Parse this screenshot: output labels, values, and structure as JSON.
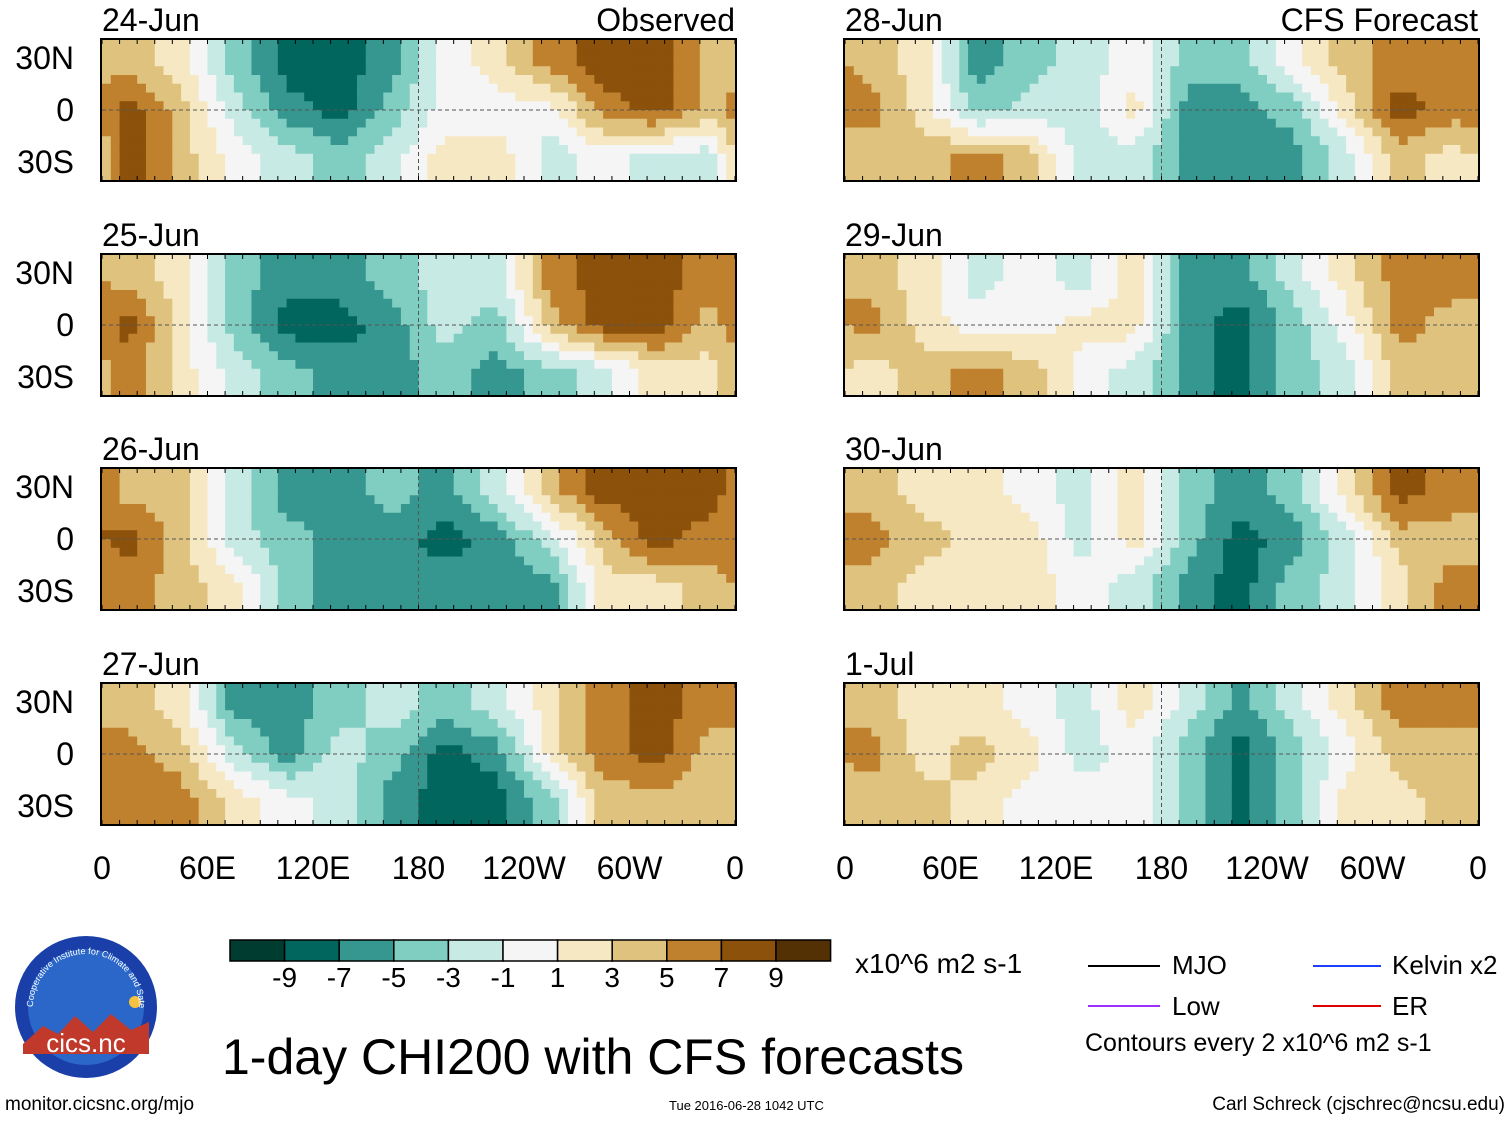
{
  "chart_data": {
    "type": "heatmap",
    "title": "1-day CHI200 with CFS forecasts",
    "units": "x10^6 m2 s-1",
    "section_labels": {
      "observed": "Observed",
      "forecast": "CFS Forecast"
    },
    "lon_ticks": [
      "0",
      "60E",
      "120E",
      "180",
      "120W",
      "60W",
      "0"
    ],
    "lat_ticks": [
      "30N",
      "0",
      "30S"
    ],
    "grid_lon_bins": "30-degree bins from 0E eastward",
    "grid_lat_bins": [
      "30N-10N",
      "10N-10S",
      "10S-30S"
    ],
    "colorbar": {
      "ticks": [
        "-9",
        "-7",
        "-5",
        "-3",
        "-1",
        "1",
        "3",
        "5",
        "7",
        "9"
      ],
      "colors": [
        "#003c30",
        "#01665e",
        "#35978f",
        "#80cdc1",
        "#c7eae5",
        "#f5f5f5",
        "#f6e8c3",
        "#dfc27d",
        "#bf812d",
        "#8c510a",
        "#543005"
      ]
    },
    "panels": [
      {
        "date": "24-Jun",
        "group": "observed",
        "values": [
          [
            4,
            2,
            -4,
            -8,
            -8,
            -6,
            0,
            2,
            6,
            8,
            8,
            4
          ],
          [
            8,
            4,
            -2,
            -6,
            -8,
            -4,
            0,
            0,
            0,
            6,
            8,
            4
          ],
          [
            8,
            4,
            0,
            -2,
            -4,
            -2,
            2,
            2,
            -2,
            0,
            -2,
            -2
          ]
        ]
      },
      {
        "date": "25-Jun",
        "group": "observed",
        "values": [
          [
            4,
            2,
            -4,
            -6,
            -6,
            -4,
            -2,
            -2,
            6,
            8,
            8,
            6
          ],
          [
            8,
            2,
            -4,
            -8,
            -8,
            -6,
            -2,
            -4,
            4,
            8,
            8,
            4
          ],
          [
            6,
            2,
            -2,
            -4,
            -6,
            -6,
            -4,
            -6,
            -4,
            -2,
            2,
            2
          ]
        ]
      },
      {
        "date": "26-Jun",
        "group": "observed",
        "values": [
          [
            4,
            4,
            -2,
            -6,
            -6,
            -4,
            -6,
            -2,
            4,
            8,
            8,
            8
          ],
          [
            8,
            4,
            -2,
            -4,
            -6,
            -6,
            -8,
            -6,
            -2,
            4,
            8,
            6
          ],
          [
            6,
            4,
            2,
            -4,
            -6,
            -6,
            -6,
            -6,
            -6,
            2,
            2,
            4
          ]
        ]
      },
      {
        "date": "27-Jun",
        "group": "observed",
        "values": [
          [
            4,
            2,
            -6,
            -6,
            -4,
            -2,
            -4,
            -2,
            2,
            6,
            8,
            6
          ],
          [
            6,
            4,
            -2,
            -6,
            -2,
            -4,
            -8,
            -6,
            2,
            6,
            8,
            4
          ],
          [
            6,
            6,
            2,
            0,
            -2,
            -6,
            -8,
            -8,
            -4,
            4,
            4,
            4
          ]
        ]
      },
      {
        "date": "28-Jun",
        "group": "forecast",
        "values": [
          [
            4,
            2,
            -6,
            -4,
            -2,
            0,
            -4,
            -4,
            0,
            4,
            6,
            6
          ],
          [
            6,
            2,
            -4,
            -2,
            -2,
            2,
            -6,
            -6,
            -4,
            2,
            8,
            6
          ],
          [
            4,
            4,
            6,
            4,
            -2,
            -2,
            -6,
            -6,
            -6,
            -2,
            4,
            2
          ]
        ]
      },
      {
        "date": "29-Jun",
        "group": "forecast",
        "values": [
          [
            4,
            2,
            -2,
            0,
            -2,
            2,
            -6,
            -6,
            -2,
            2,
            6,
            6
          ],
          [
            6,
            2,
            0,
            0,
            2,
            2,
            -6,
            -8,
            -4,
            0,
            6,
            4
          ],
          [
            2,
            4,
            6,
            4,
            0,
            -2,
            -6,
            -8,
            -4,
            -2,
            4,
            4
          ]
        ]
      },
      {
        "date": "30-Jun",
        "group": "forecast",
        "values": [
          [
            4,
            2,
            2,
            0,
            -2,
            2,
            -4,
            -6,
            -4,
            2,
            8,
            6
          ],
          [
            6,
            4,
            2,
            2,
            -2,
            2,
            -4,
            -8,
            -6,
            -2,
            4,
            4
          ],
          [
            4,
            2,
            2,
            2,
            0,
            -2,
            -6,
            -8,
            -4,
            -2,
            2,
            6
          ]
        ]
      },
      {
        "date": "1-Jul",
        "group": "forecast",
        "values": [
          [
            4,
            2,
            2,
            0,
            -2,
            2,
            -2,
            -6,
            -2,
            2,
            6,
            6
          ],
          [
            6,
            2,
            4,
            2,
            -2,
            0,
            -4,
            -8,
            -4,
            0,
            4,
            4
          ],
          [
            4,
            4,
            2,
            0,
            0,
            0,
            -4,
            -8,
            -4,
            2,
            2,
            4
          ]
        ]
      }
    ]
  },
  "legend": {
    "items": [
      {
        "label": "MJO",
        "color": "#000000"
      },
      {
        "label": "Low",
        "color": "#9b30ff"
      },
      {
        "label": "Kelvin x2",
        "color": "#1f3fff"
      },
      {
        "label": "ER",
        "color": "#e00000"
      }
    ],
    "contours_note": "Contours every 2 x10^6 m2 s-1"
  },
  "logo_text": "cics.nc",
  "logo_ring_text": "Cooperative Institute for Climate and Satellites",
  "footer": {
    "url": "monitor.cicsnc.org/mjo",
    "timestamp": "Tue 2016-06-28 1042 UTC",
    "author": "Carl Schreck (cjschrec@ncsu.edu)"
  }
}
